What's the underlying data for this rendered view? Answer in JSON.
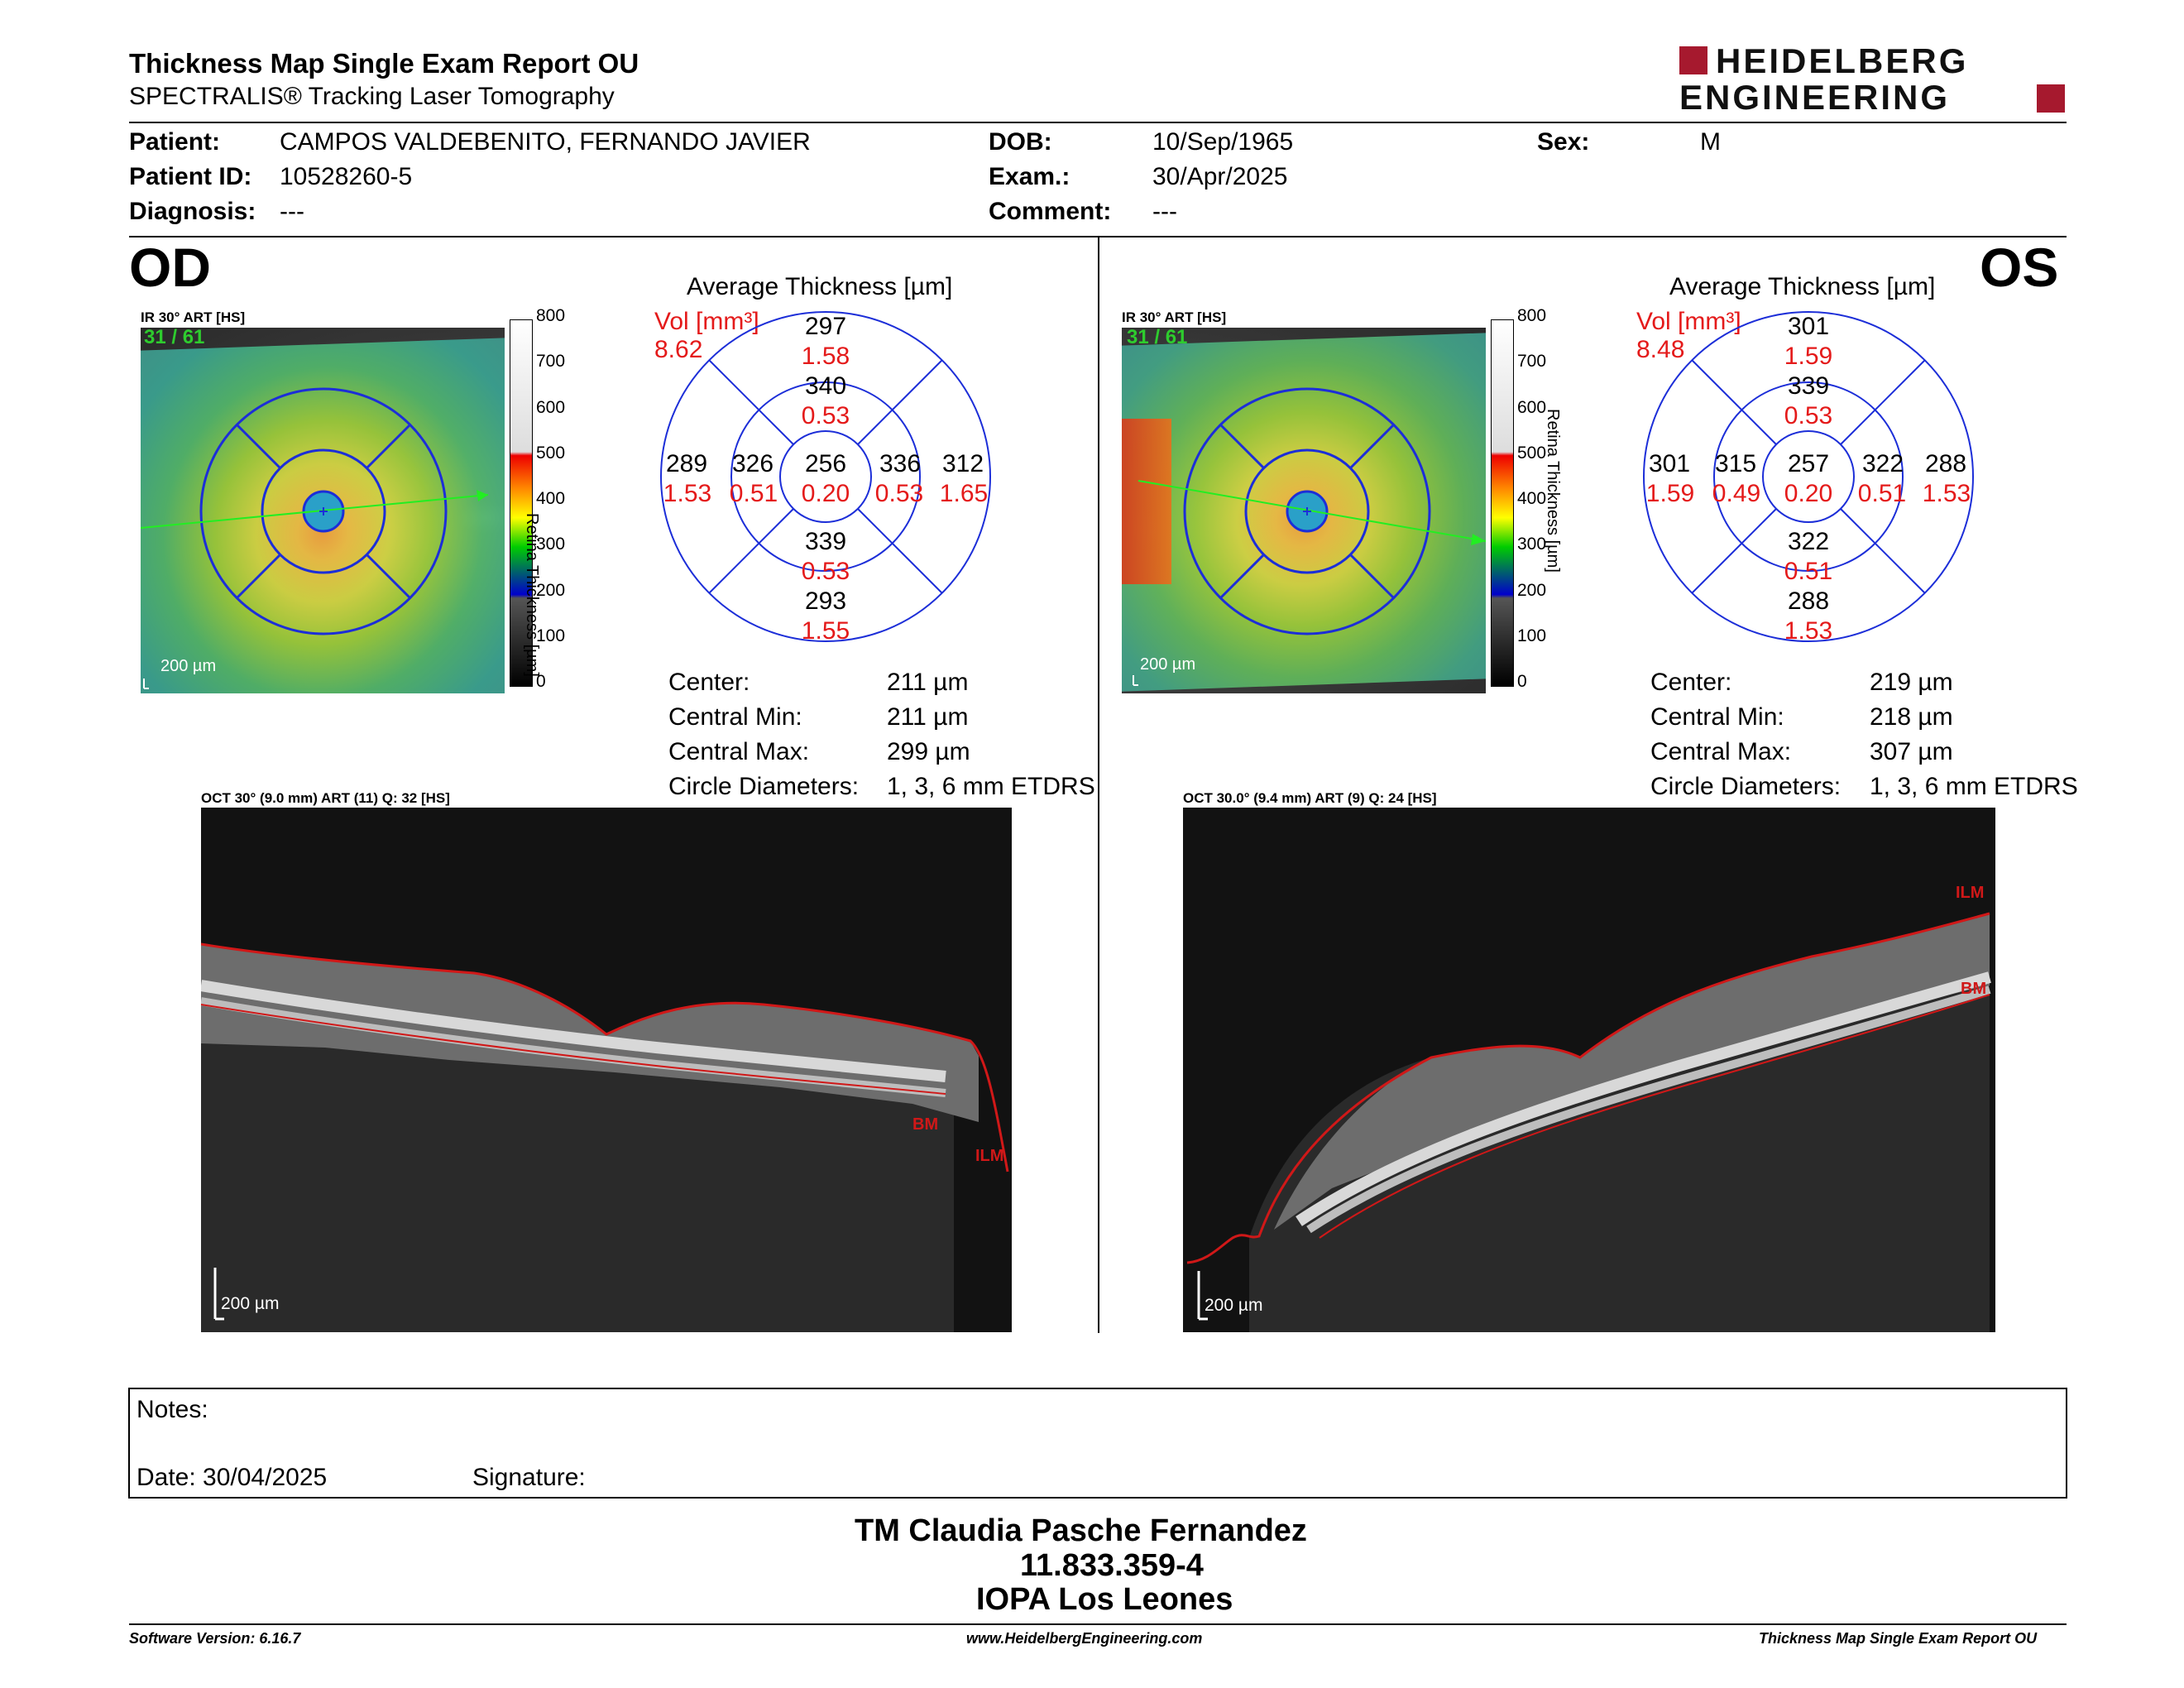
{
  "header": {
    "title": "Thickness Map Single Exam Report OU",
    "subtitle": "SPECTRALIS® Tracking Laser Tomography",
    "logo_line1": "HEIDELBERG",
    "logo_line2": "ENGINEERING",
    "logo_color": "#a6192e"
  },
  "patient": {
    "patient_label": "Patient:",
    "patient_value": "CAMPOS VALDEBENITO, FERNANDO JAVIER",
    "id_label": "Patient ID:",
    "id_value": "10528260-5",
    "diag_label": "Diagnosis:",
    "diag_value": "---",
    "dob_label": "DOB:",
    "dob_value": "10/Sep/1965",
    "exam_label": "Exam.:",
    "exam_value": "30/Apr/2025",
    "comment_label": "Comment:",
    "comment_value": "---",
    "sex_label": "Sex:",
    "sex_value": "M"
  },
  "od": {
    "eye": "OD",
    "ir_label": "IR 30° ART [HS]",
    "frame": "31 / 61",
    "scale": "200 µm",
    "colorbar_label": "Retina Thickness [µm]",
    "colorbar_ticks": [
      "800",
      "700",
      "600",
      "500",
      "400",
      "300",
      "200",
      "100",
      "0"
    ],
    "avg_title": "Average Thickness [µm]",
    "vol_label": "Vol [mm³]",
    "vol_value": "8.62",
    "etdrs": {
      "center_t": "256",
      "center_v": "0.20",
      "inner_sup_t": "340",
      "inner_sup_v": "0.53",
      "inner_inf_t": "339",
      "inner_inf_v": "0.53",
      "inner_left_t": "326",
      "inner_left_v": "0.51",
      "inner_right_t": "336",
      "inner_right_v": "0.53",
      "outer_sup_t": "297",
      "outer_sup_v": "1.58",
      "outer_inf_t": "293",
      "outer_inf_v": "1.55",
      "outer_left_t": "289",
      "outer_left_v": "1.53",
      "outer_right_t": "312",
      "outer_right_v": "1.65"
    },
    "stats": [
      {
        "label": "Center:",
        "value": "211 µm"
      },
      {
        "label": "Central Min:",
        "value": "211 µm"
      },
      {
        "label": "Central Max:",
        "value": "299 µm"
      },
      {
        "label": "Circle Diameters:",
        "value": "1, 3, 6 mm ETDRS"
      }
    ],
    "oct_label": "OCT 30° (9.0 mm) ART (11) Q: 32 [HS]",
    "oct_scale": "200 µm",
    "bm": "BM",
    "ilm": "ILM"
  },
  "os": {
    "eye": "OS",
    "ir_label": "IR 30° ART [HS]",
    "frame": "31 / 61",
    "scale": "200 µm",
    "colorbar_label": "Retina Thickness [µm]",
    "colorbar_ticks": [
      "800",
      "700",
      "600",
      "500",
      "400",
      "300",
      "200",
      "100",
      "0"
    ],
    "avg_title": "Average Thickness [µm]",
    "vol_label": "Vol [mm³]",
    "vol_value": "8.48",
    "etdrs": {
      "center_t": "257",
      "center_v": "0.20",
      "inner_sup_t": "339",
      "inner_sup_v": "0.53",
      "inner_inf_t": "322",
      "inner_inf_v": "0.51",
      "inner_left_t": "315",
      "inner_left_v": "0.49",
      "inner_right_t": "322",
      "inner_right_v": "0.51",
      "outer_sup_t": "301",
      "outer_sup_v": "1.59",
      "outer_inf_t": "288",
      "outer_inf_v": "1.53",
      "outer_left_t": "301",
      "outer_left_v": "1.59",
      "outer_right_t": "288",
      "outer_right_v": "1.53"
    },
    "stats": [
      {
        "label": "Center:",
        "value": "219 µm"
      },
      {
        "label": "Central Min:",
        "value": "218 µm"
      },
      {
        "label": "Central Max:",
        "value": "307 µm"
      },
      {
        "label": "Circle Diameters:",
        "value": "1, 3, 6 mm ETDRS"
      }
    ],
    "oct_label": "OCT 30.0° (9.4 mm) ART (9) Q: 24 [HS]",
    "oct_scale": "200 µm",
    "bm": "BM",
    "ilm": "ILM"
  },
  "notes": {
    "notes_label": "Notes:",
    "date_label": "Date: 30/04/2025",
    "signature_label": "Signature:"
  },
  "signer": {
    "name": "TM Claudia Pasche Fernandez",
    "rut": "11.833.359-4",
    "institution": "IOPA Los Leones"
  },
  "footer": {
    "version": "Software Version: 6.16.7",
    "website": "www.HeidelbergEngineering.com",
    "report": "Thickness Map Single Exam Report OU"
  }
}
